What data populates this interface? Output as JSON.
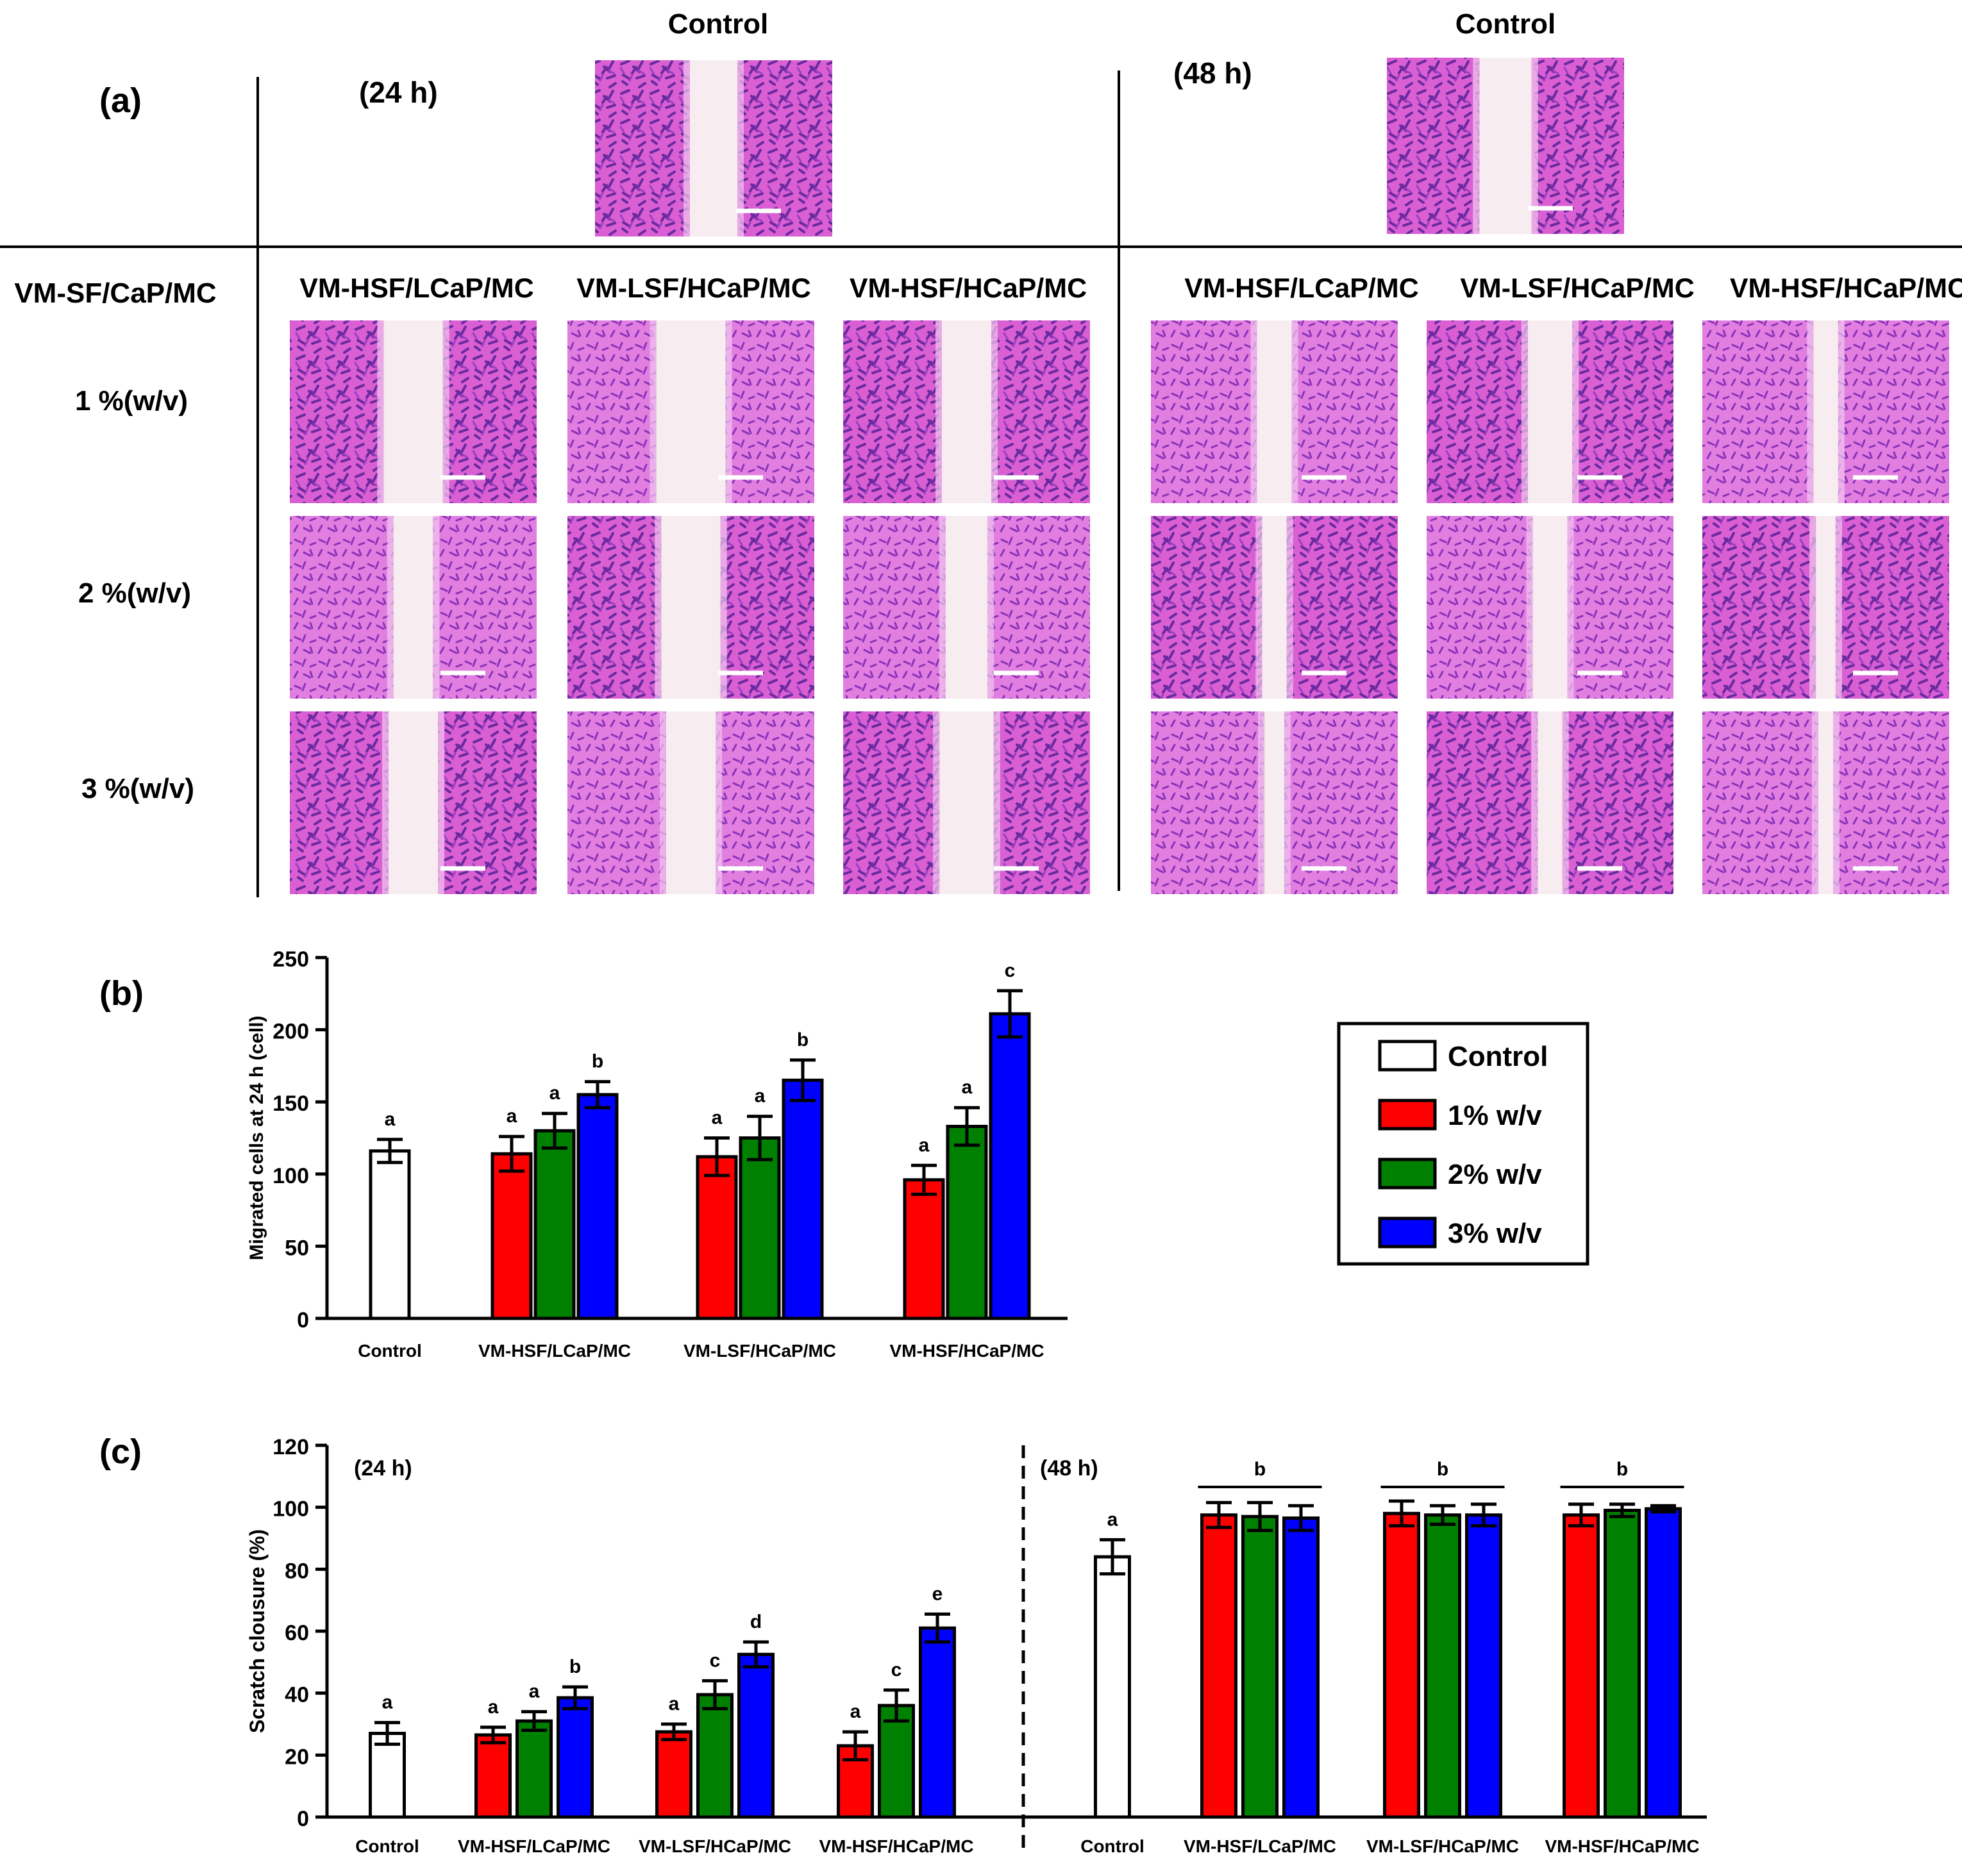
{
  "panel_a": {
    "label": "(a)",
    "row_header": "VM-SF/CaP/MC",
    "conditions": [
      "1 %(w/v)",
      "2 %(w/v)",
      "3 %(w/v)"
    ],
    "left": {
      "time": "(24 h)",
      "control_title": "Control",
      "columns": [
        "VM-HSF/LCaP/MC",
        "VM-LSF/HCaP/MC",
        "VM-HSF/HCaP/MC"
      ]
    },
    "right": {
      "time": "(48 h)",
      "control_title": "Control",
      "columns": [
        "VM-HSF/LCaP/MC",
        "VM-LSF/HCaP/MC",
        "VM-HSF/HCaP/MC"
      ]
    }
  },
  "legend": {
    "entries": [
      {
        "label": "Control",
        "color": "#ffffff"
      },
      {
        "label": "1% w/v",
        "color": "#ff0000"
      },
      {
        "label": "2% w/v",
        "color": "#008000"
      },
      {
        "label": "3% w/v",
        "color": "#0000ff"
      }
    ]
  },
  "chart_data": [
    {
      "panel": "(b)",
      "type": "bar",
      "ylabel": "Migrated cells at 24 h (cell)",
      "ylim": [
        0,
        250
      ],
      "yticks": [
        0,
        50,
        100,
        150,
        200,
        250
      ],
      "groups": [
        {
          "label": "Control",
          "bars": [
            {
              "series": "Control",
              "value": 116,
              "err": 8,
              "letter": "a"
            }
          ]
        },
        {
          "label": "VM-HSF/LCaP/MC",
          "bars": [
            {
              "series": "1% w/v",
              "value": 114,
              "err": 12,
              "letter": "a"
            },
            {
              "series": "2% w/v",
              "value": 130,
              "err": 12,
              "letter": "a"
            },
            {
              "series": "3% w/v",
              "value": 155,
              "err": 9,
              "letter": "b"
            }
          ]
        },
        {
          "label": "VM-LSF/HCaP/MC",
          "bars": [
            {
              "series": "1% w/v",
              "value": 112,
              "err": 13,
              "letter": "a"
            },
            {
              "series": "2% w/v",
              "value": 125,
              "err": 15,
              "letter": "a"
            },
            {
              "series": "3% w/v",
              "value": 165,
              "err": 14,
              "letter": "b"
            }
          ]
        },
        {
          "label": "VM-HSF/HCaP/MC",
          "bars": [
            {
              "series": "1% w/v",
              "value": 96,
              "err": 10,
              "letter": "a"
            },
            {
              "series": "2% w/v",
              "value": 133,
              "err": 13,
              "letter": "a"
            },
            {
              "series": "3% w/v",
              "value": 211,
              "err": 16,
              "letter": "c"
            }
          ]
        }
      ]
    },
    {
      "panel": "(c)",
      "type": "bar",
      "ylabel": "Scratch clousure (%)",
      "ylim": [
        0,
        120
      ],
      "yticks": [
        0,
        20,
        40,
        60,
        80,
        100,
        120
      ],
      "sections": [
        {
          "time": "(24 h)",
          "groups": [
            {
              "label": "Control",
              "bars": [
                {
                  "series": "Control",
                  "value": 27,
                  "err": 3.5,
                  "letter": "a"
                }
              ]
            },
            {
              "label": "VM-HSF/LCaP/MC",
              "bars": [
                {
                  "series": "1% w/v",
                  "value": 26.5,
                  "err": 2.5,
                  "letter": "a"
                },
                {
                  "series": "2% w/v",
                  "value": 31,
                  "err": 3,
                  "letter": "a"
                },
                {
                  "series": "3% w/v",
                  "value": 38.5,
                  "err": 3.5,
                  "letter": "b"
                }
              ]
            },
            {
              "label": "VM-LSF/HCaP/MC",
              "bars": [
                {
                  "series": "1% w/v",
                  "value": 27.5,
                  "err": 2.5,
                  "letter": "a"
                },
                {
                  "series": "2% w/v",
                  "value": 39.5,
                  "err": 4.5,
                  "letter": "c"
                },
                {
                  "series": "3% w/v",
                  "value": 52.5,
                  "err": 4,
                  "letter": "d"
                }
              ]
            },
            {
              "label": "VM-HSF/HCaP/MC",
              "bars": [
                {
                  "series": "1% w/v",
                  "value": 23,
                  "err": 4.5,
                  "letter": "a"
                },
                {
                  "series": "2% w/v",
                  "value": 36,
                  "err": 5,
                  "letter": "c"
                },
                {
                  "series": "3% w/v",
                  "value": 61,
                  "err": 4.5,
                  "letter": "e"
                }
              ]
            }
          ]
        },
        {
          "time": "(48 h)",
          "groups": [
            {
              "label": "Control",
              "bars": [
                {
                  "series": "Control",
                  "value": 84,
                  "err": 5.5,
                  "letter": "a"
                }
              ]
            },
            {
              "label": "VM-HSF/LCaP/MC",
              "group_letter": "b",
              "bars": [
                {
                  "series": "1% w/v",
                  "value": 97.5,
                  "err": 4
                },
                {
                  "series": "2% w/v",
                  "value": 97,
                  "err": 4.5
                },
                {
                  "series": "3% w/v",
                  "value": 96.5,
                  "err": 4
                }
              ]
            },
            {
              "label": "VM-LSF/HCaP/MC",
              "group_letter": "b",
              "bars": [
                {
                  "series": "1% w/v",
                  "value": 98,
                  "err": 4
                },
                {
                  "series": "2% w/v",
                  "value": 97.5,
                  "err": 3
                },
                {
                  "series": "3% w/v",
                  "value": 97.5,
                  "err": 3.5
                }
              ]
            },
            {
              "label": "VM-HSF/HCaP/MC",
              "group_letter": "b",
              "bars": [
                {
                  "series": "1% w/v",
                  "value": 97.5,
                  "err": 3.5
                },
                {
                  "series": "2% w/v",
                  "value": 99,
                  "err": 2
                },
                {
                  "series": "3% w/v",
                  "value": 99.5,
                  "err": 1
                }
              ]
            }
          ]
        }
      ]
    }
  ]
}
